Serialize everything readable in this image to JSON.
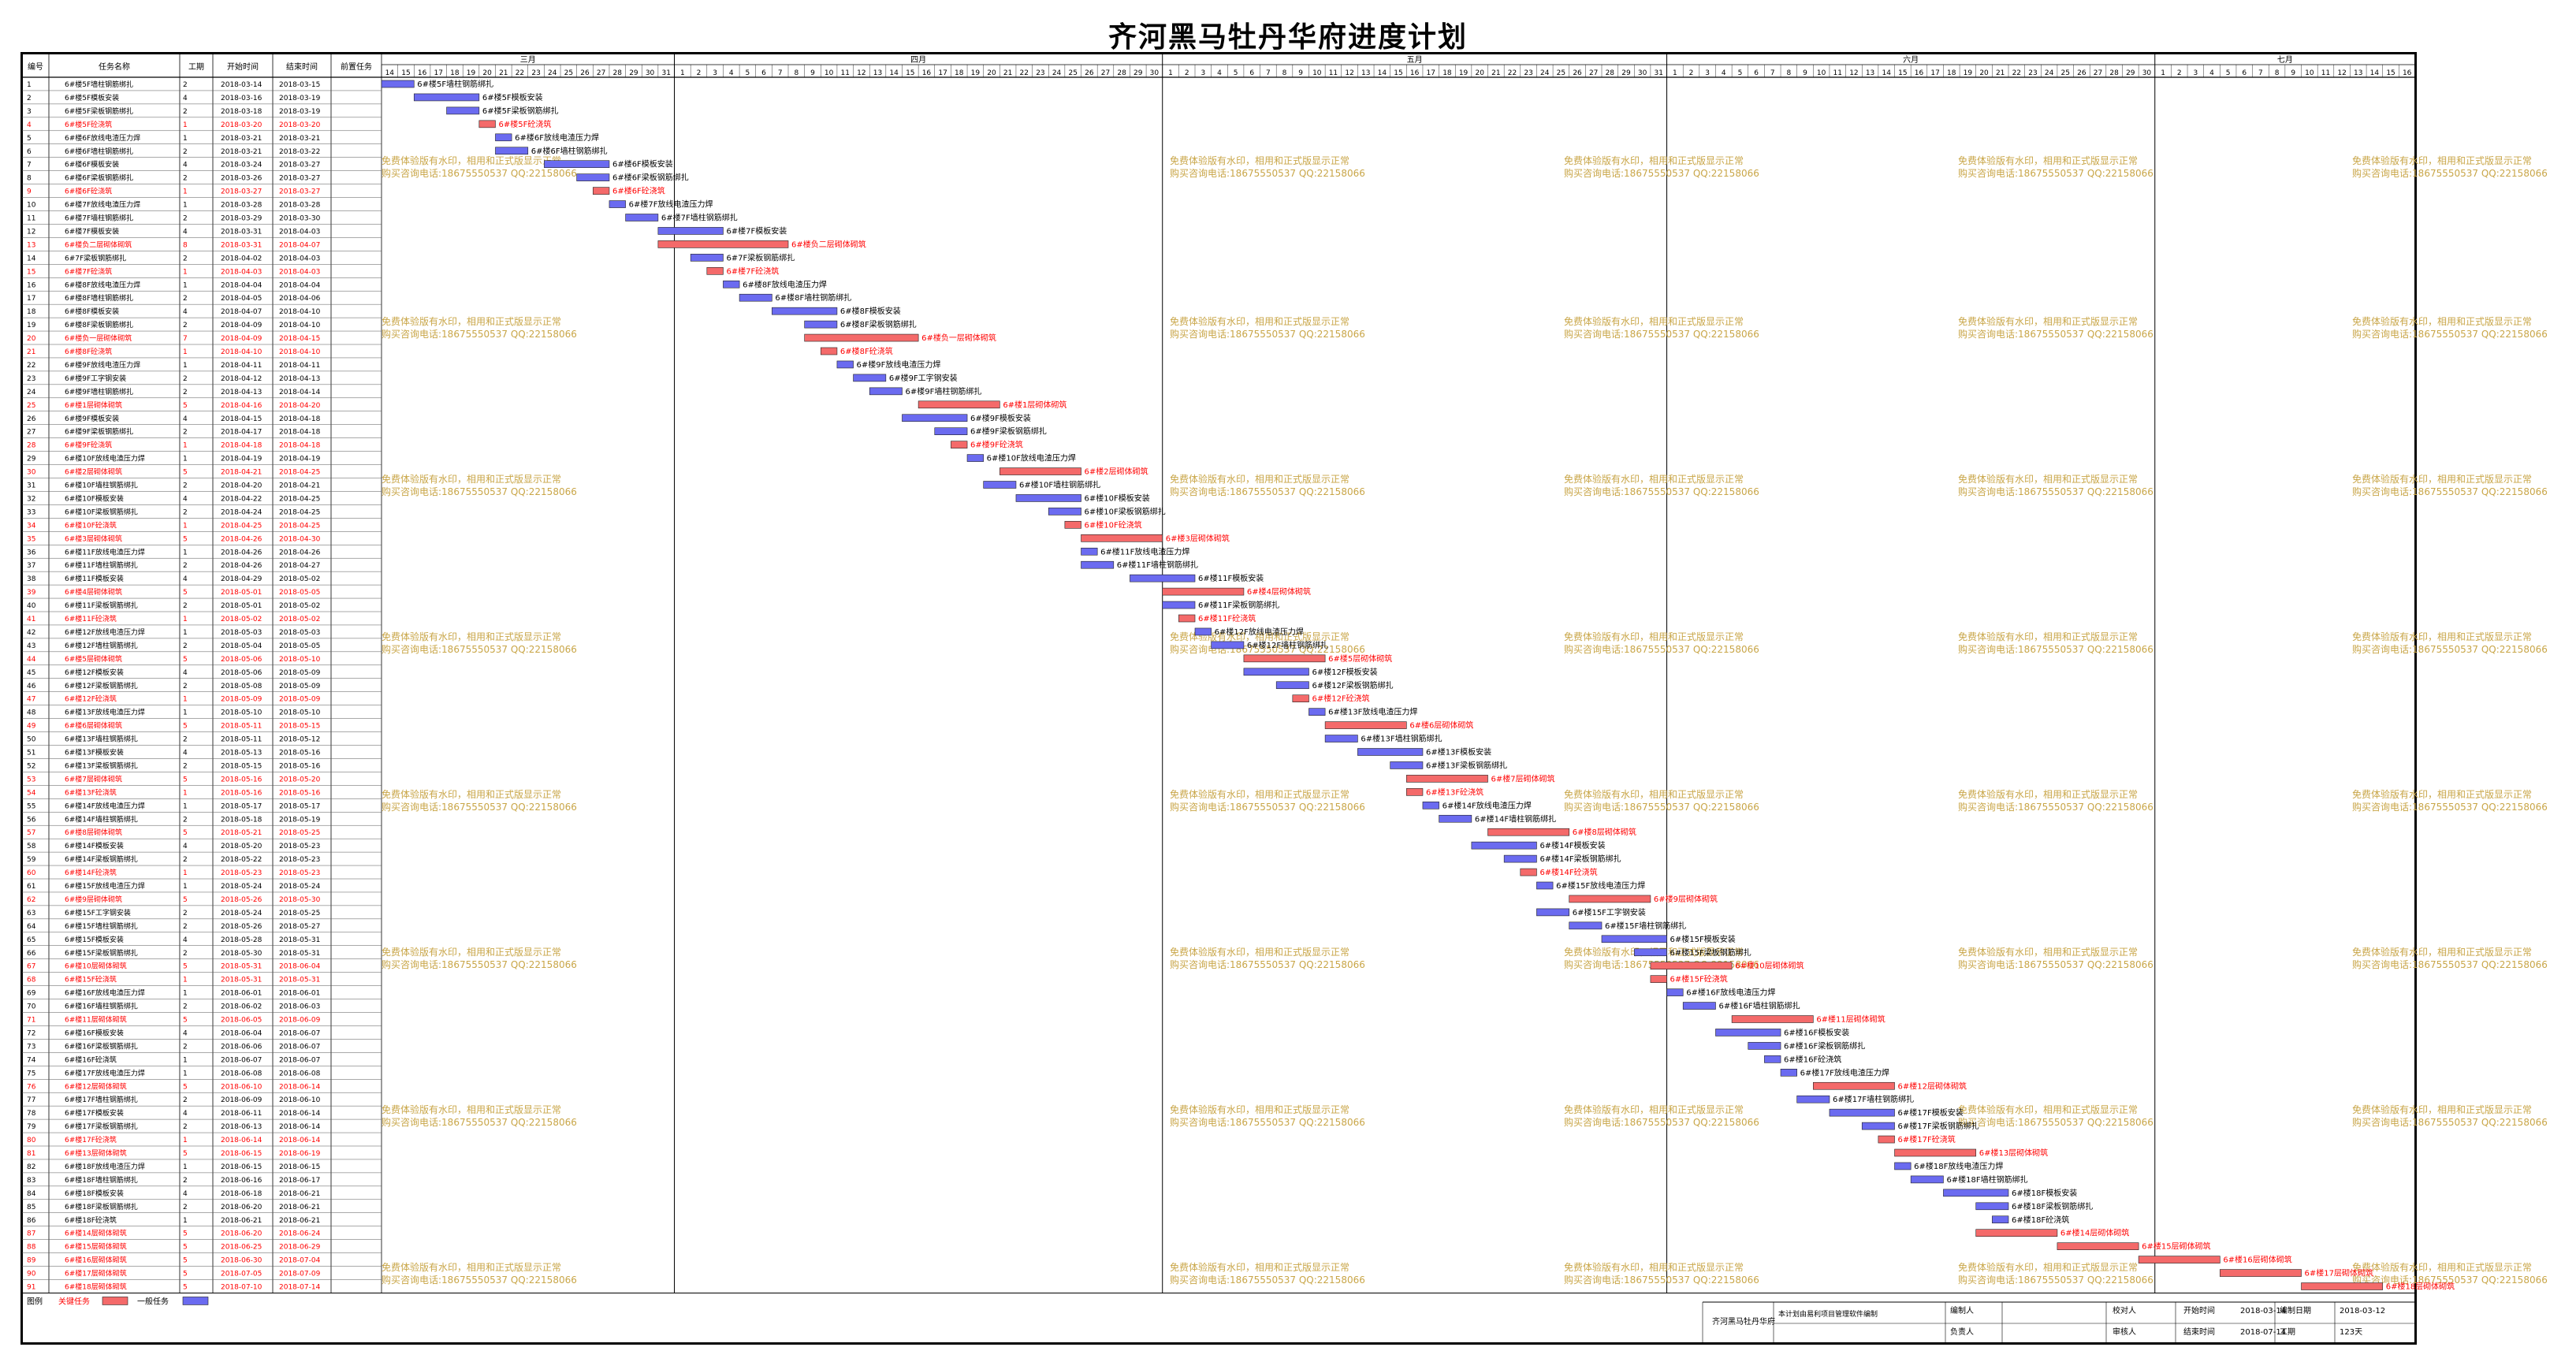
{
  "title": "齐河黑马牡丹华府进度计划",
  "columns": [
    "编号",
    "任务名称",
    "工期",
    "开始时间",
    "结束时间",
    "前置任务"
  ],
  "months": [
    "三月",
    "四月",
    "五月",
    "六月",
    "七月"
  ],
  "legend": {
    "label": "图例",
    "critical": "关键任务",
    "normal": "一般任务"
  },
  "watermark": {
    "line1": "免费体验版有水印，相用和正式版显示正常",
    "line2": "购买咨询电话:18675550537 QQ:22158066"
  },
  "footer": {
    "project": "齐河黑马牡丹华府",
    "software": "本计划由易利项目管理软件编制",
    "author_label": "编制人",
    "checker_label": "校对人",
    "start_label": "开始时间",
    "start_value": "2018-03-14",
    "date_label": "编制日期",
    "date_value": "2018-03-12",
    "head_label": "负责人",
    "reviewer_label": "审核人",
    "end_label": "结束时间",
    "end_value": "2018-07-14",
    "dur_label": "工期",
    "dur_value": "123天"
  },
  "colors": {
    "critical": "#f46a6a",
    "normal": "#6b6bf0",
    "critical_text": "#ff0000",
    "watermark": "#c9a648"
  },
  "chart_data": {
    "type": "gantt",
    "time_start": "2018-03-14",
    "time_end": "2018-07-16",
    "tasks": [
      {
        "id": 1,
        "name": "6#楼5F墙柱钢筋绑扎",
        "dur": 2,
        "start": "2018-03-14",
        "end": "2018-03-15",
        "critical": false
      },
      {
        "id": 2,
        "name": "6#楼5F模板安装",
        "dur": 4,
        "start": "2018-03-16",
        "end": "2018-03-19",
        "critical": false
      },
      {
        "id": 3,
        "name": "6#楼5F梁板钢筋绑扎",
        "dur": 2,
        "start": "2018-03-18",
        "end": "2018-03-19",
        "critical": false
      },
      {
        "id": 4,
        "name": "6#楼5F砼浇筑",
        "dur": 1,
        "start": "2018-03-20",
        "end": "2018-03-20",
        "critical": true
      },
      {
        "id": 5,
        "name": "6#楼6F放线电渣压力焊",
        "dur": 1,
        "start": "2018-03-21",
        "end": "2018-03-21",
        "critical": false
      },
      {
        "id": 6,
        "name": "6#楼6F墙柱钢筋绑扎",
        "dur": 2,
        "start": "2018-03-21",
        "end": "2018-03-22",
        "critical": false
      },
      {
        "id": 7,
        "name": "6#楼6F模板安装",
        "dur": 4,
        "start": "2018-03-24",
        "end": "2018-03-27",
        "critical": false
      },
      {
        "id": 8,
        "name": "6#楼6F梁板钢筋绑扎",
        "dur": 2,
        "start": "2018-03-26",
        "end": "2018-03-27",
        "critical": false
      },
      {
        "id": 9,
        "name": "6#楼6F砼浇筑",
        "dur": 1,
        "start": "2018-03-27",
        "end": "2018-03-27",
        "critical": true
      },
      {
        "id": 10,
        "name": "6#楼7F放线电渣压力焊",
        "dur": 1,
        "start": "2018-03-28",
        "end": "2018-03-28",
        "critical": false
      },
      {
        "id": 11,
        "name": "6#楼7F墙柱钢筋绑扎",
        "dur": 2,
        "start": "2018-03-29",
        "end": "2018-03-30",
        "critical": false
      },
      {
        "id": 12,
        "name": "6#楼7F模板安装",
        "dur": 4,
        "start": "2018-03-31",
        "end": "2018-04-03",
        "critical": false
      },
      {
        "id": 13,
        "name": "6#楼负二层砌体砌筑",
        "dur": 8,
        "start": "2018-03-31",
        "end": "2018-04-07",
        "critical": true
      },
      {
        "id": 14,
        "name": "6#7F梁板钢筋绑扎",
        "dur": 2,
        "start": "2018-04-02",
        "end": "2018-04-03",
        "critical": false
      },
      {
        "id": 15,
        "name": "6#楼7F砼浇筑",
        "dur": 1,
        "start": "2018-04-03",
        "end": "2018-04-03",
        "critical": true
      },
      {
        "id": 16,
        "name": "6#楼8F放线电渣压力焊",
        "dur": 1,
        "start": "2018-04-04",
        "end": "2018-04-04",
        "critical": false
      },
      {
        "id": 17,
        "name": "6#楼8F墙柱钢筋绑扎",
        "dur": 2,
        "start": "2018-04-05",
        "end": "2018-04-06",
        "critical": false
      },
      {
        "id": 18,
        "name": "6#楼8F模板安装",
        "dur": 4,
        "start": "2018-04-07",
        "end": "2018-04-10",
        "critical": false
      },
      {
        "id": 19,
        "name": "6#楼8F梁板钢筋绑扎",
        "dur": 2,
        "start": "2018-04-09",
        "end": "2018-04-10",
        "critical": false
      },
      {
        "id": 20,
        "name": "6#楼负一层砌体砌筑",
        "dur": 7,
        "start": "2018-04-09",
        "end": "2018-04-15",
        "critical": true
      },
      {
        "id": 21,
        "name": "6#楼8F砼浇筑",
        "dur": 1,
        "start": "2018-04-10",
        "end": "2018-04-10",
        "critical": true
      },
      {
        "id": 22,
        "name": "6#楼9F放线电渣压力焊",
        "dur": 1,
        "start": "2018-04-11",
        "end": "2018-04-11",
        "critical": false
      },
      {
        "id": 23,
        "name": "6#楼9F工字钢安装",
        "dur": 2,
        "start": "2018-04-12",
        "end": "2018-04-13",
        "critical": false
      },
      {
        "id": 24,
        "name": "6#楼9F墙柱钢筋绑扎",
        "dur": 2,
        "start": "2018-04-13",
        "end": "2018-04-14",
        "critical": false
      },
      {
        "id": 25,
        "name": "6#楼1层砌体砌筑",
        "dur": 5,
        "start": "2018-04-16",
        "end": "2018-04-20",
        "critical": true
      },
      {
        "id": 26,
        "name": "6#楼9F模板安装",
        "dur": 4,
        "start": "2018-04-15",
        "end": "2018-04-18",
        "critical": false
      },
      {
        "id": 27,
        "name": "6#楼9F梁板钢筋绑扎",
        "dur": 2,
        "start": "2018-04-17",
        "end": "2018-04-18",
        "critical": false
      },
      {
        "id": 28,
        "name": "6#楼9F砼浇筑",
        "dur": 1,
        "start": "2018-04-18",
        "end": "2018-04-18",
        "critical": true
      },
      {
        "id": 29,
        "name": "6#楼10F放线电渣压力焊",
        "dur": 1,
        "start": "2018-04-19",
        "end": "2018-04-19",
        "critical": false
      },
      {
        "id": 30,
        "name": "6#楼2层砌体砌筑",
        "dur": 5,
        "start": "2018-04-21",
        "end": "2018-04-25",
        "critical": true
      },
      {
        "id": 31,
        "name": "6#楼10F墙柱钢筋绑扎",
        "dur": 2,
        "start": "2018-04-20",
        "end": "2018-04-21",
        "critical": false
      },
      {
        "id": 32,
        "name": "6#楼10F模板安装",
        "dur": 4,
        "start": "2018-04-22",
        "end": "2018-04-25",
        "critical": false
      },
      {
        "id": 33,
        "name": "6#楼10F梁板钢筋绑扎",
        "dur": 2,
        "start": "2018-04-24",
        "end": "2018-04-25",
        "critical": false
      },
      {
        "id": 34,
        "name": "6#楼10F砼浇筑",
        "dur": 1,
        "start": "2018-04-25",
        "end": "2018-04-25",
        "critical": true
      },
      {
        "id": 35,
        "name": "6#楼3层砌体砌筑",
        "dur": 5,
        "start": "2018-04-26",
        "end": "2018-04-30",
        "critical": true
      },
      {
        "id": 36,
        "name": "6#楼11F放线电渣压力焊",
        "dur": 1,
        "start": "2018-04-26",
        "end": "2018-04-26",
        "critical": false
      },
      {
        "id": 37,
        "name": "6#楼11F墙柱钢筋绑扎",
        "dur": 2,
        "start": "2018-04-26",
        "end": "2018-04-27",
        "critical": false
      },
      {
        "id": 38,
        "name": "6#楼11F模板安装",
        "dur": 4,
        "start": "2018-04-29",
        "end": "2018-05-02",
        "critical": false
      },
      {
        "id": 39,
        "name": "6#楼4层砌体砌筑",
        "dur": 5,
        "start": "2018-05-01",
        "end": "2018-05-05",
        "critical": true
      },
      {
        "id": 40,
        "name": "6#楼11F梁板钢筋绑扎",
        "dur": 2,
        "start": "2018-05-01",
        "end": "2018-05-02",
        "critical": false
      },
      {
        "id": 41,
        "name": "6#楼11F砼浇筑",
        "dur": 1,
        "start": "2018-05-02",
        "end": "2018-05-02",
        "critical": true
      },
      {
        "id": 42,
        "name": "6#楼12F放线电渣压力焊",
        "dur": 1,
        "start": "2018-05-03",
        "end": "2018-05-03",
        "critical": false
      },
      {
        "id": 43,
        "name": "6#楼12F墙柱钢筋绑扎",
        "dur": 2,
        "start": "2018-05-04",
        "end": "2018-05-05",
        "critical": false
      },
      {
        "id": 44,
        "name": "6#楼5层砌体砌筑",
        "dur": 5,
        "start": "2018-05-06",
        "end": "2018-05-10",
        "critical": true
      },
      {
        "id": 45,
        "name": "6#楼12F模板安装",
        "dur": 4,
        "start": "2018-05-06",
        "end": "2018-05-09",
        "critical": false
      },
      {
        "id": 46,
        "name": "6#楼12F梁板钢筋绑扎",
        "dur": 2,
        "start": "2018-05-08",
        "end": "2018-05-09",
        "critical": false
      },
      {
        "id": 47,
        "name": "6#楼12F砼浇筑",
        "dur": 1,
        "start": "2018-05-09",
        "end": "2018-05-09",
        "critical": true
      },
      {
        "id": 48,
        "name": "6#楼13F放线电渣压力焊",
        "dur": 1,
        "start": "2018-05-10",
        "end": "2018-05-10",
        "critical": false
      },
      {
        "id": 49,
        "name": "6#楼6层砌体砌筑",
        "dur": 5,
        "start": "2018-05-11",
        "end": "2018-05-15",
        "critical": true
      },
      {
        "id": 50,
        "name": "6#楼13F墙柱钢筋绑扎",
        "dur": 2,
        "start": "2018-05-11",
        "end": "2018-05-12",
        "critical": false
      },
      {
        "id": 51,
        "name": "6#楼13F模板安装",
        "dur": 4,
        "start": "2018-05-13",
        "end": "2018-05-16",
        "critical": false
      },
      {
        "id": 52,
        "name": "6#楼13F梁板钢筋绑扎",
        "dur": 2,
        "start": "2018-05-15",
        "end": "2018-05-16",
        "critical": false
      },
      {
        "id": 53,
        "name": "6#楼7层砌体砌筑",
        "dur": 5,
        "start": "2018-05-16",
        "end": "2018-05-20",
        "critical": true
      },
      {
        "id": 54,
        "name": "6#楼13F砼浇筑",
        "dur": 1,
        "start": "2018-05-16",
        "end": "2018-05-16",
        "critical": true
      },
      {
        "id": 55,
        "name": "6#楼14F放线电渣压力焊",
        "dur": 1,
        "start": "2018-05-17",
        "end": "2018-05-17",
        "critical": false
      },
      {
        "id": 56,
        "name": "6#楼14F墙柱钢筋绑扎",
        "dur": 2,
        "start": "2018-05-18",
        "end": "2018-05-19",
        "critical": false
      },
      {
        "id": 57,
        "name": "6#楼8层砌体砌筑",
        "dur": 5,
        "start": "2018-05-21",
        "end": "2018-05-25",
        "critical": true
      },
      {
        "id": 58,
        "name": "6#楼14F模板安装",
        "dur": 4,
        "start": "2018-05-20",
        "end": "2018-05-23",
        "critical": false
      },
      {
        "id": 59,
        "name": "6#楼14F梁板钢筋绑扎",
        "dur": 2,
        "start": "2018-05-22",
        "end": "2018-05-23",
        "critical": false
      },
      {
        "id": 60,
        "name": "6#楼14F砼浇筑",
        "dur": 1,
        "start": "2018-05-23",
        "end": "2018-05-23",
        "critical": true
      },
      {
        "id": 61,
        "name": "6#楼15F放线电渣压力焊",
        "dur": 1,
        "start": "2018-05-24",
        "end": "2018-05-24",
        "critical": false
      },
      {
        "id": 62,
        "name": "6#楼9层砌体砌筑",
        "dur": 5,
        "start": "2018-05-26",
        "end": "2018-05-30",
        "critical": true
      },
      {
        "id": 63,
        "name": "6#楼15F工字钢安装",
        "dur": 2,
        "start": "2018-05-24",
        "end": "2018-05-25",
        "critical": false
      },
      {
        "id": 64,
        "name": "6#楼15F墙柱钢筋绑扎",
        "dur": 2,
        "start": "2018-05-26",
        "end": "2018-05-27",
        "critical": false
      },
      {
        "id": 65,
        "name": "6#楼15F模板安装",
        "dur": 4,
        "start": "2018-05-28",
        "end": "2018-05-31",
        "critical": false
      },
      {
        "id": 66,
        "name": "6#楼15F梁板钢筋绑扎",
        "dur": 2,
        "start": "2018-05-30",
        "end": "2018-05-31",
        "critical": false
      },
      {
        "id": 67,
        "name": "6#楼10层砌体砌筑",
        "dur": 5,
        "start": "2018-05-31",
        "end": "2018-06-04",
        "critical": true
      },
      {
        "id": 68,
        "name": "6#楼15F砼浇筑",
        "dur": 1,
        "start": "2018-05-31",
        "end": "2018-05-31",
        "critical": true
      },
      {
        "id": 69,
        "name": "6#楼16F放线电渣压力焊",
        "dur": 1,
        "start": "2018-06-01",
        "end": "2018-06-01",
        "critical": false
      },
      {
        "id": 70,
        "name": "6#楼16F墙柱钢筋绑扎",
        "dur": 2,
        "start": "2018-06-02",
        "end": "2018-06-03",
        "critical": false
      },
      {
        "id": 71,
        "name": "6#楼11层砌体砌筑",
        "dur": 5,
        "start": "2018-06-05",
        "end": "2018-06-09",
        "critical": true
      },
      {
        "id": 72,
        "name": "6#楼16F模板安装",
        "dur": 4,
        "start": "2018-06-04",
        "end": "2018-06-07",
        "critical": false
      },
      {
        "id": 73,
        "name": "6#楼16F梁板钢筋绑扎",
        "dur": 2,
        "start": "2018-06-06",
        "end": "2018-06-07",
        "critical": false
      },
      {
        "id": 74,
        "name": "6#楼16F砼浇筑",
        "dur": 1,
        "start": "2018-06-07",
        "end": "2018-06-07",
        "critical": false
      },
      {
        "id": 75,
        "name": "6#楼17F放线电渣压力焊",
        "dur": 1,
        "start": "2018-06-08",
        "end": "2018-06-08",
        "critical": false
      },
      {
        "id": 76,
        "name": "6#楼12层砌体砌筑",
        "dur": 5,
        "start": "2018-06-10",
        "end": "2018-06-14",
        "critical": true
      },
      {
        "id": 77,
        "name": "6#楼17F墙柱钢筋绑扎",
        "dur": 2,
        "start": "2018-06-09",
        "end": "2018-06-10",
        "critical": false
      },
      {
        "id": 78,
        "name": "6#楼17F模板安装",
        "dur": 4,
        "start": "2018-06-11",
        "end": "2018-06-14",
        "critical": false
      },
      {
        "id": 79,
        "name": "6#楼17F梁板钢筋绑扎",
        "dur": 2,
        "start": "2018-06-13",
        "end": "2018-06-14",
        "critical": false
      },
      {
        "id": 80,
        "name": "6#楼17F砼浇筑",
        "dur": 1,
        "start": "2018-06-14",
        "end": "2018-06-14",
        "critical": true
      },
      {
        "id": 81,
        "name": "6#楼13层砌体砌筑",
        "dur": 5,
        "start": "2018-06-15",
        "end": "2018-06-19",
        "critical": true
      },
      {
        "id": 82,
        "name": "6#楼18F放线电渣压力焊",
        "dur": 1,
        "start": "2018-06-15",
        "end": "2018-06-15",
        "critical": false
      },
      {
        "id": 83,
        "name": "6#楼18F墙柱钢筋绑扎",
        "dur": 2,
        "start": "2018-06-16",
        "end": "2018-06-17",
        "critical": false
      },
      {
        "id": 84,
        "name": "6#楼18F模板安装",
        "dur": 4,
        "start": "2018-06-18",
        "end": "2018-06-21",
        "critical": false
      },
      {
        "id": 85,
        "name": "6#楼18F梁板钢筋绑扎",
        "dur": 2,
        "start": "2018-06-20",
        "end": "2018-06-21",
        "critical": false
      },
      {
        "id": 86,
        "name": "6#楼18F砼浇筑",
        "dur": 1,
        "start": "2018-06-21",
        "end": "2018-06-21",
        "critical": false
      },
      {
        "id": 87,
        "name": "6#楼14层砌体砌筑",
        "dur": 5,
        "start": "2018-06-20",
        "end": "2018-06-24",
        "critical": true
      },
      {
        "id": 88,
        "name": "6#楼15层砌体砌筑",
        "dur": 5,
        "start": "2018-06-25",
        "end": "2018-06-29",
        "critical": true
      },
      {
        "id": 89,
        "name": "6#楼16层砌体砌筑",
        "dur": 5,
        "start": "2018-06-30",
        "end": "2018-07-04",
        "critical": true
      },
      {
        "id": 90,
        "name": "6#楼17层砌体砌筑",
        "dur": 5,
        "start": "2018-07-05",
        "end": "2018-07-09",
        "critical": true
      },
      {
        "id": 91,
        "name": "6#楼18层砌体砌筑",
        "dur": 5,
        "start": "2018-07-10",
        "end": "2018-07-14",
        "critical": true
      }
    ]
  }
}
